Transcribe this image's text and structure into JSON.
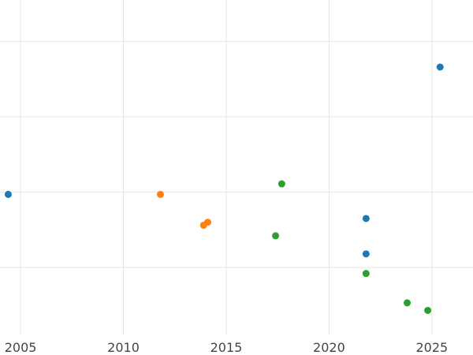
{
  "chart_data": {
    "type": "scatter",
    "title": "",
    "xlabel": "",
    "ylabel": "",
    "grid": true,
    "xlim": [
      2004,
      2027
    ],
    "ylim": [
      -1.9,
      2.55
    ],
    "x_ticks": [
      2005,
      2010,
      2015,
      2020,
      2025
    ],
    "x_tick_labels": [
      "2005",
      "2010",
      "2015",
      "2020",
      "2025"
    ],
    "y_gridlines": [
      -1,
      0,
      1,
      2
    ],
    "series": [
      {
        "color": "#1f77b4",
        "points": [
          {
            "x": 2004.4,
            "y": -0.03
          },
          {
            "x": 2021.8,
            "y": -0.35
          },
          {
            "x": 2021.8,
            "y": -0.82
          },
          {
            "x": 2025.4,
            "y": 1.66
          }
        ]
      },
      {
        "color": "#ff7f0e",
        "points": [
          {
            "x": 2011.8,
            "y": -0.03
          },
          {
            "x": 2013.9,
            "y": -0.44
          },
          {
            "x": 2014.1,
            "y": -0.4
          }
        ]
      },
      {
        "color": "#2ca02c",
        "points": [
          {
            "x": 2017.7,
            "y": 0.11
          },
          {
            "x": 2017.4,
            "y": -0.58
          },
          {
            "x": 2021.8,
            "y": -1.08
          },
          {
            "x": 2023.8,
            "y": -1.47
          },
          {
            "x": 2024.8,
            "y": -1.57
          }
        ]
      }
    ]
  }
}
